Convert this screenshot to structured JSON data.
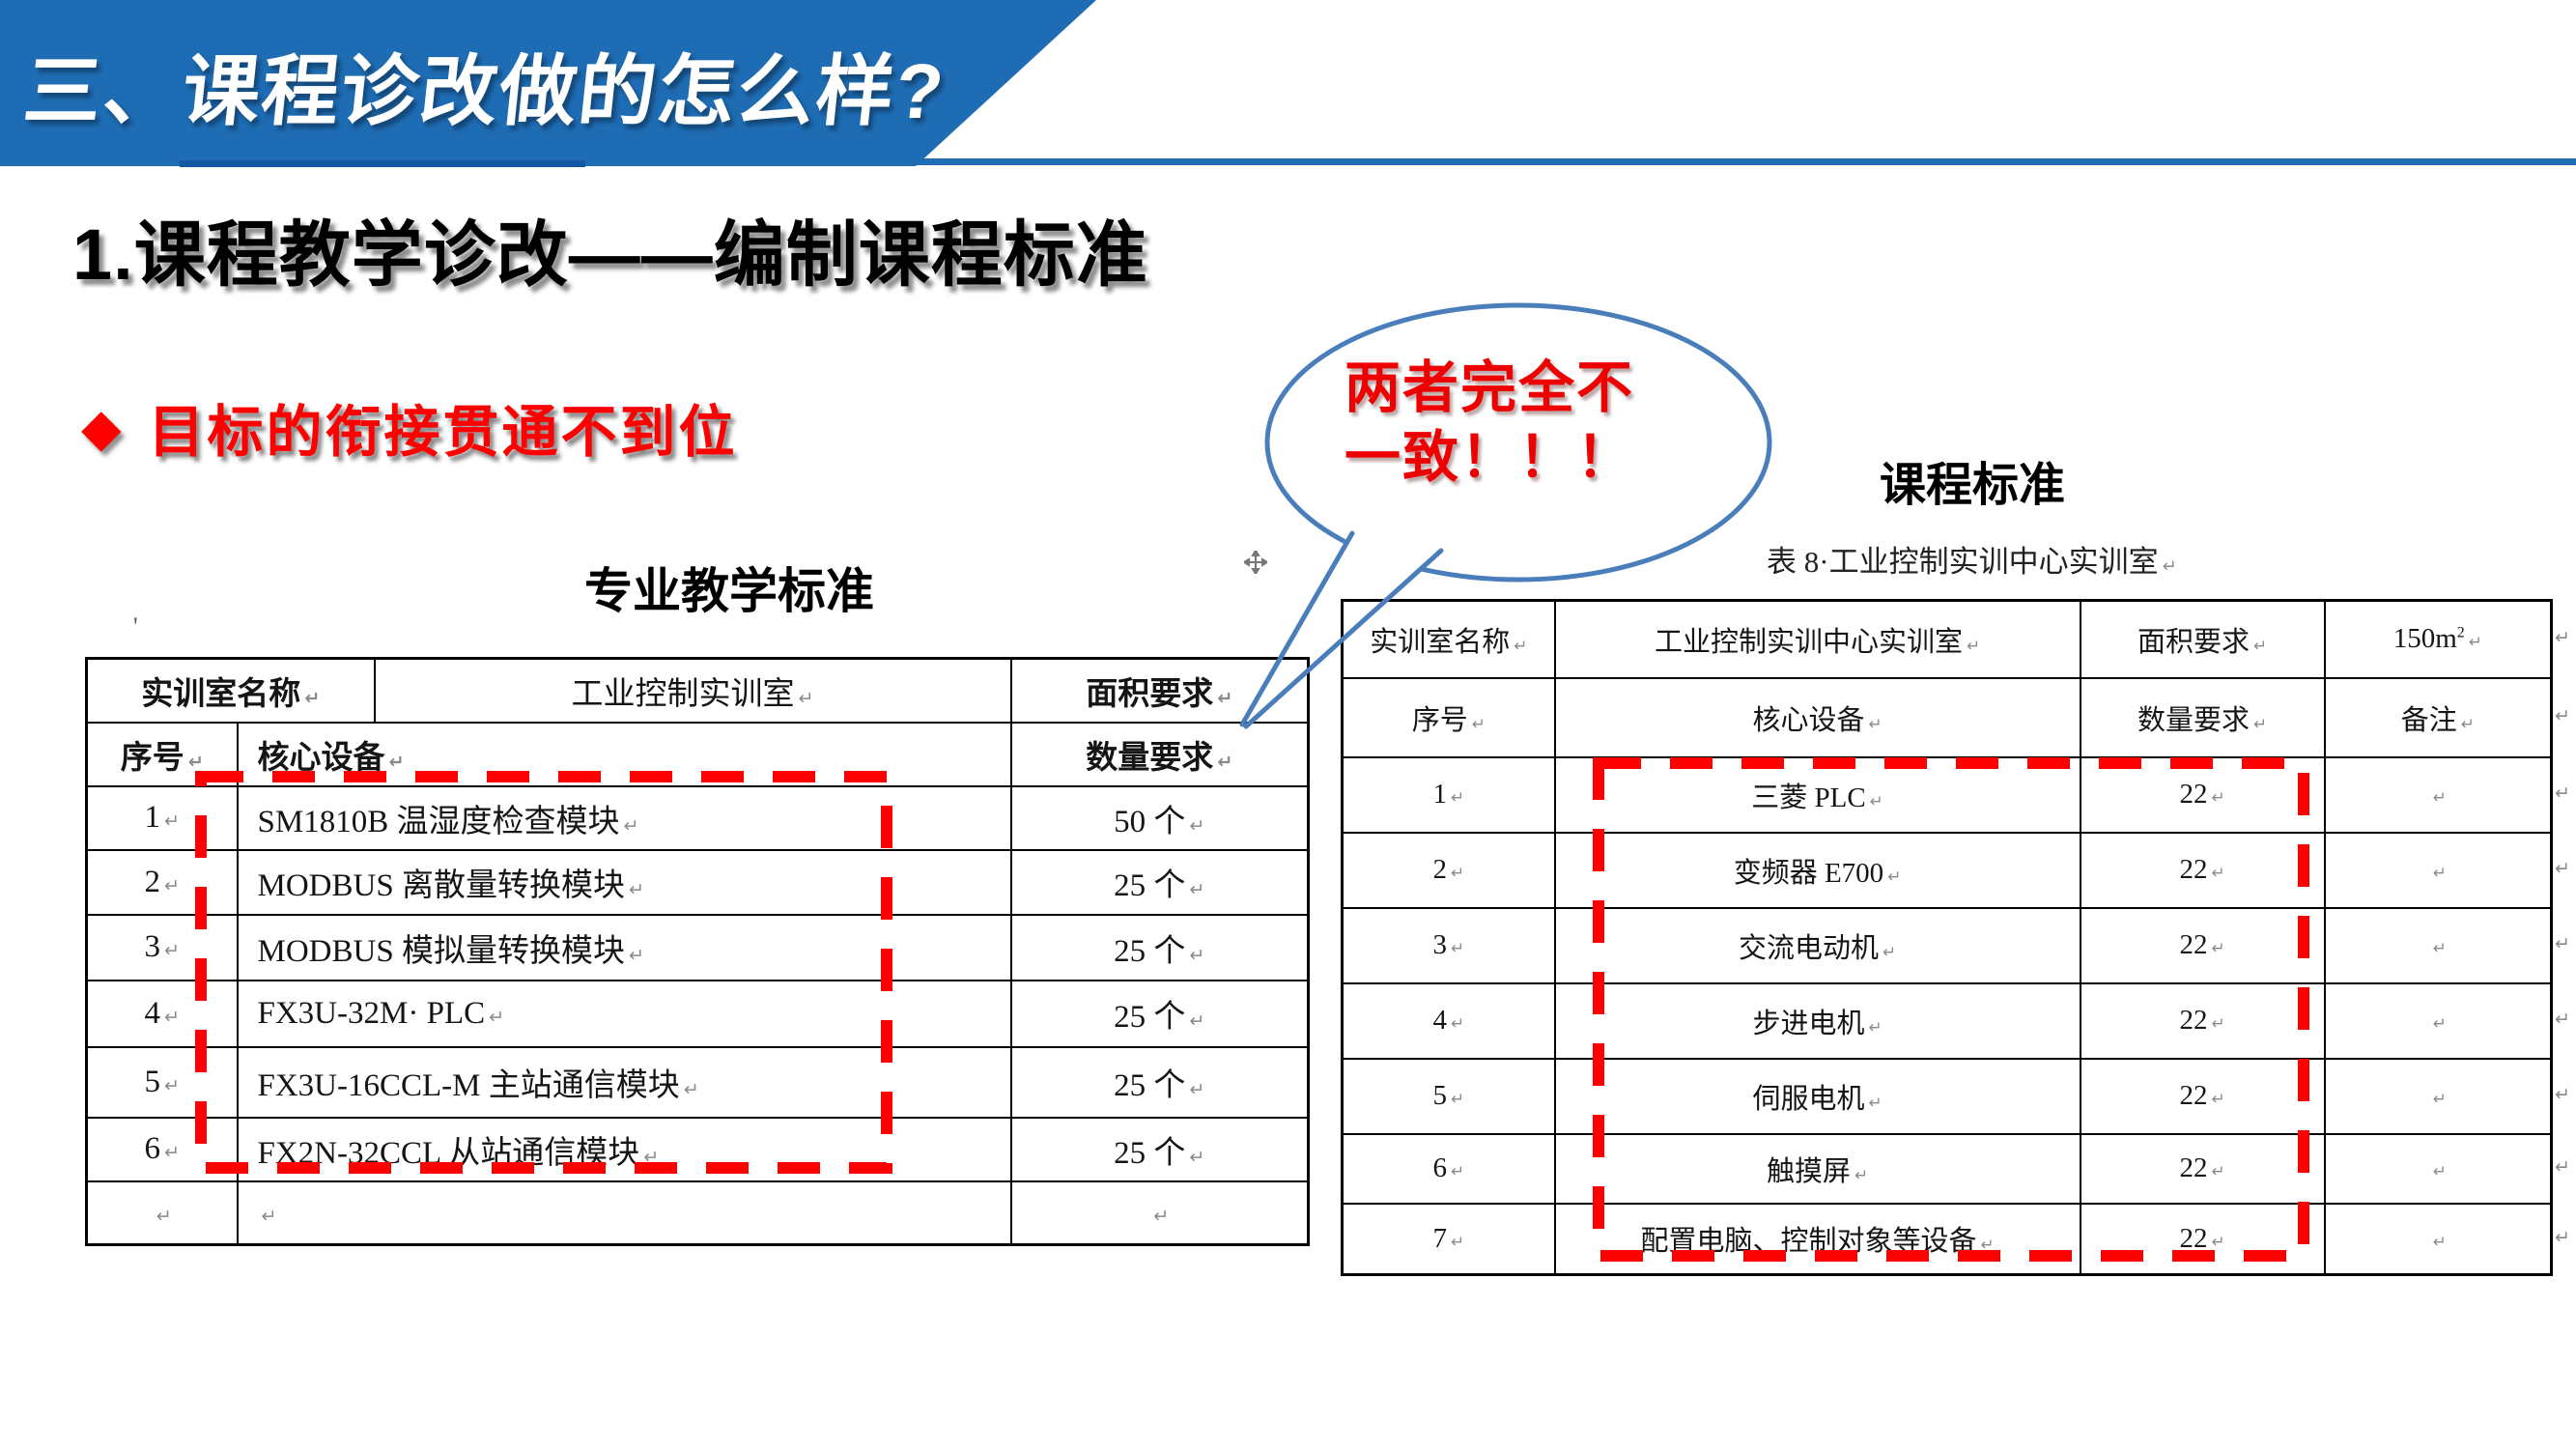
{
  "banner": {
    "title": "三、课程诊改做的怎么样?"
  },
  "heading": {
    "title": "1.课程教学诊改——编制课程标准"
  },
  "bullet": {
    "marker": "◆",
    "text": "目标的衔接贯通不到位"
  },
  "callout": {
    "lines": [
      "两者完全不",
      "一致！！！"
    ]
  },
  "marks": {
    "paragraph": "↵",
    "stray_quote": "'"
  },
  "left_panel": {
    "caption": "专业教学标准",
    "table": {
      "header_row_1": [
        "实训室名称",
        "工业控制实训室",
        "面积要求"
      ],
      "header_row_2": [
        "序号",
        "核心设备",
        "数量要求"
      ],
      "rows": [
        [
          "1",
          "SM1810B 温湿度检查模块",
          "50 个"
        ],
        [
          "2",
          "MODBUS 离散量转换模块",
          "25 个"
        ],
        [
          "3",
          "MODBUS 模拟量转换模块",
          "25 个"
        ],
        [
          "4",
          "FX3U-32M· PLC",
          "25 个"
        ],
        [
          "5",
          "FX3U-16CCL-M 主站通信模块",
          "25 个"
        ],
        [
          "6",
          "FX2N-32CCL 从站通信模块",
          "25 个"
        ],
        [
          "",
          "",
          ""
        ]
      ]
    }
  },
  "right_panel": {
    "caption": "课程标准",
    "table_caption": "表 8·工业控制实训中心实训室",
    "table": {
      "header_row_1": [
        "实训室名称",
        "工业控制实训中心实训室",
        "面积要求",
        "150m²"
      ],
      "header_row_2": [
        "序号",
        "核心设备",
        "数量要求",
        "备注"
      ],
      "rows": [
        [
          "1",
          "三菱 PLC",
          "22",
          ""
        ],
        [
          "2",
          "变频器 E700",
          "22",
          ""
        ],
        [
          "3",
          "交流电动机",
          "22",
          ""
        ],
        [
          "4",
          "步进电机",
          "22",
          ""
        ],
        [
          "5",
          "伺服电机",
          "22",
          ""
        ],
        [
          "6",
          "触摸屏",
          "22",
          ""
        ],
        [
          "7",
          "配置电脑、控制对象等设备",
          "22",
          ""
        ]
      ]
    }
  },
  "colors": {
    "banner_blue": "#1e6cb4",
    "banner_underline_dark": "#1257a2",
    "highlight_dash_red": "#ff0000",
    "bullet_red": "#fe0000",
    "callout_text_red": "#ee0000",
    "callout_border_blue": "#4a7ebb",
    "table_border": "#000000",
    "paragraph_mark_gray": "#8a8a8a"
  }
}
